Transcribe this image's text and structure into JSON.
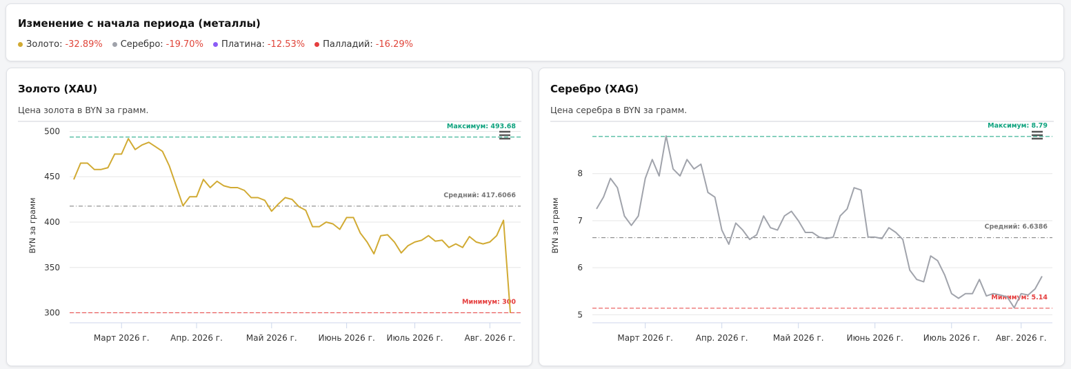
{
  "header": {
    "title": "Изменение с начала периода (металлы)",
    "items": [
      {
        "name": "Золото:",
        "change": "-32.89%",
        "color": "#d1aa32"
      },
      {
        "name": "Серебро:",
        "change": "-19.70%",
        "color": "#a0a3ab"
      },
      {
        "name": "Платина:",
        "change": "-12.53%",
        "color": "#8b5cf6"
      },
      {
        "name": "Палладий:",
        "change": "-16.29%",
        "color": "#e53e3e"
      }
    ]
  },
  "chart_data": [
    {
      "type": "line",
      "title": "Золото (XAU)",
      "subtitle": "Цена золота в BYN за грамм.",
      "y_label": "BYN за грамм",
      "color": "#d1aa32",
      "categories": [
        null,
        null,
        null,
        null,
        null,
        null,
        null,
        null,
        null,
        null,
        null,
        null,
        null,
        null,
        null,
        null,
        null,
        null,
        null,
        null,
        null,
        null,
        null,
        null,
        null,
        null,
        null,
        null,
        null,
        null,
        null,
        null,
        null,
        null,
        null,
        null,
        null,
        null,
        null,
        null,
        null,
        null,
        null,
        null,
        null,
        null,
        null,
        null,
        null,
        null,
        null,
        null,
        null,
        null,
        null,
        null,
        null,
        null,
        null,
        null,
        null,
        null,
        null,
        null,
        null
      ],
      "values": [
        447,
        465,
        465,
        458,
        458,
        460,
        475,
        475,
        492,
        480,
        485,
        488,
        483,
        478,
        462,
        440,
        418,
        428,
        428,
        447,
        438,
        445,
        440,
        438,
        438,
        435,
        427,
        427,
        424,
        412,
        420,
        427,
        425,
        417,
        413,
        395,
        395,
        400,
        398,
        392,
        405,
        405,
        388,
        378,
        365,
        385,
        386,
        378,
        366,
        374,
        378,
        380,
        385,
        379,
        380,
        372,
        376,
        372,
        384,
        378,
        376,
        378,
        385,
        402,
        300
      ],
      "xticks": [
        {
          "value": 7,
          "label": "Март 2026 г."
        },
        {
          "value": 18,
          "label": "Апр. 2026 г."
        },
        {
          "value": 29,
          "label": "Май 2026 г."
        },
        {
          "value": 40,
          "label": "Июнь 2026 г."
        },
        {
          "value": 50,
          "label": "Июль 2026 г."
        },
        {
          "value": 61,
          "label": "Авг. 2026 г."
        }
      ],
      "ylim": [
        289,
        511
      ],
      "yticks": [
        300,
        350,
        400,
        450,
        500
      ],
      "grid": true,
      "reference_lines": [
        {
          "label": "Максимум: 493.68",
          "value": 493.68,
          "color": "#10a37f"
        },
        {
          "label": "Средний: 417.6066",
          "value": 417.6066,
          "color": "#777777"
        },
        {
          "label": "Минимум: 300",
          "value": 300,
          "color": "#e53e3e"
        }
      ]
    },
    {
      "type": "line",
      "title": "Серебро (XAG)",
      "subtitle": "Цена серебра в BYN за грамм.",
      "y_label": "BYN за грамм",
      "color": "#a0a3ab",
      "categories": [
        null,
        null,
        null,
        null,
        null,
        null,
        null,
        null,
        null,
        null,
        null,
        null,
        null,
        null,
        null,
        null,
        null,
        null,
        null,
        null,
        null,
        null,
        null,
        null,
        null,
        null,
        null,
        null,
        null,
        null,
        null,
        null,
        null,
        null,
        null,
        null,
        null,
        null,
        null,
        null,
        null,
        null,
        null,
        null,
        null,
        null,
        null,
        null,
        null,
        null,
        null,
        null,
        null,
        null,
        null,
        null,
        null,
        null,
        null,
        null,
        null,
        null,
        null,
        null,
        null
      ],
      "values": [
        7.25,
        7.5,
        7.9,
        7.7,
        7.1,
        6.9,
        7.1,
        7.9,
        8.3,
        7.95,
        8.8,
        8.1,
        7.95,
        8.3,
        8.1,
        8.2,
        7.6,
        7.5,
        6.8,
        6.5,
        6.95,
        6.8,
        6.6,
        6.7,
        7.1,
        6.85,
        6.8,
        7.1,
        7.2,
        7.0,
        6.75,
        6.75,
        6.65,
        6.62,
        6.65,
        7.1,
        7.25,
        7.7,
        7.65,
        6.65,
        6.65,
        6.62,
        6.85,
        6.75,
        6.6,
        5.95,
        5.75,
        5.7,
        6.25,
        6.15,
        5.85,
        5.45,
        5.35,
        5.45,
        5.45,
        5.75,
        5.4,
        5.45,
        5.42,
        5.38,
        5.15,
        5.45,
        5.42,
        5.55,
        5.82
      ],
      "xticks": [
        {
          "value": 7,
          "label": "Март 2026 г."
        },
        {
          "value": 18,
          "label": "Апр. 2026 г."
        },
        {
          "value": 29,
          "label": "Май 2026 г."
        },
        {
          "value": 40,
          "label": "Июнь 2026 г."
        },
        {
          "value": 51,
          "label": "Июль 2026 г."
        },
        {
          "value": 61,
          "label": "Авг. 2026 г."
        }
      ],
      "ylim": [
        4.83,
        9.11
      ],
      "yticks": [
        5,
        6,
        7,
        8
      ],
      "grid": true,
      "reference_lines": [
        {
          "label": "Максимум: 8.79",
          "value": 8.79,
          "color": "#10a37f"
        },
        {
          "label": "Средний: 6.6386",
          "value": 6.6386,
          "color": "#777777"
        },
        {
          "label": "Минимум: 5.14",
          "value": 5.14,
          "color": "#e53e3e"
        }
      ]
    }
  ]
}
